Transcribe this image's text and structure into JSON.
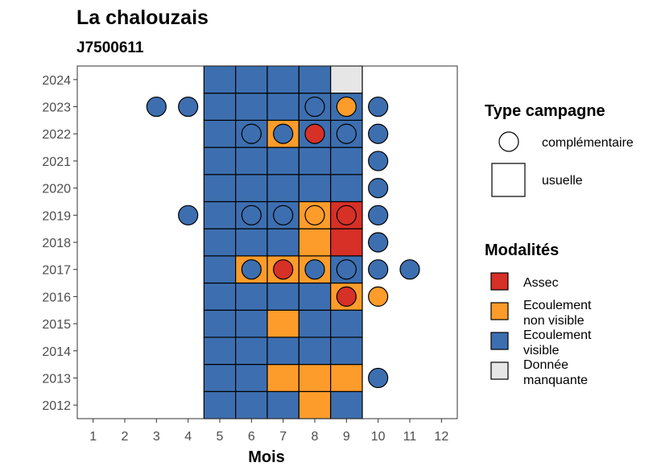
{
  "chart_data": {
    "type": "heatmap",
    "title": "La chalouzais",
    "subtitle": "J7500611",
    "xlabel": "Mois",
    "ylabel": "",
    "x_ticks": [
      "1",
      "2",
      "3",
      "4",
      "5",
      "6",
      "7",
      "8",
      "9",
      "10",
      "11",
      "12"
    ],
    "y_ticks": [
      "2012",
      "2013",
      "2014",
      "2015",
      "2016",
      "2017",
      "2018",
      "2019",
      "2020",
      "2021",
      "2022",
      "2023",
      "2024"
    ],
    "xlim": [
      0.5,
      12.5
    ],
    "ylim": [
      2011.5,
      2024.5
    ],
    "grid": false,
    "legend_position": "right",
    "colors": {
      "A": "#d73027",
      "O": "#fd9c2a",
      "B": "#3d6fb0",
      "G": "#e6e6e6"
    },
    "legends": {
      "type": {
        "title": "Type campagne",
        "items": [
          {
            "label": "complémentaire",
            "shape": "circle"
          },
          {
            "label": "usuelle",
            "shape": "square"
          }
        ]
      },
      "modalites": {
        "title": "Modalités",
        "items": [
          {
            "key": "A",
            "lines": [
              "Assec"
            ]
          },
          {
            "key": "O",
            "lines": [
              "Ecoulement",
              "non visible"
            ]
          },
          {
            "key": "B",
            "lines": [
              "Ecoulement",
              "visible"
            ]
          },
          {
            "key": "G",
            "lines": [
              "Donnée",
              "manquante"
            ]
          }
        ]
      }
    },
    "usuelle": [
      {
        "year": 2012,
        "months": [
          5,
          6,
          7,
          8,
          9
        ],
        "values": [
          "B",
          "B",
          "B",
          "O",
          "B"
        ]
      },
      {
        "year": 2013,
        "months": [
          5,
          6,
          7,
          8,
          9
        ],
        "values": [
          "B",
          "B",
          "O",
          "O",
          "O"
        ]
      },
      {
        "year": 2014,
        "months": [
          5,
          6,
          7,
          8,
          9
        ],
        "values": [
          "B",
          "B",
          "B",
          "B",
          "B"
        ]
      },
      {
        "year": 2015,
        "months": [
          5,
          6,
          7,
          8,
          9
        ],
        "values": [
          "B",
          "B",
          "O",
          "B",
          "B"
        ]
      },
      {
        "year": 2016,
        "months": [
          5,
          6,
          7,
          8,
          9
        ],
        "values": [
          "B",
          "B",
          "B",
          "B",
          "O"
        ]
      },
      {
        "year": 2017,
        "months": [
          5,
          6,
          7,
          8,
          9
        ],
        "values": [
          "B",
          "O",
          "O",
          "O",
          "B"
        ]
      },
      {
        "year": 2018,
        "months": [
          5,
          6,
          7,
          8,
          9
        ],
        "values": [
          "B",
          "B",
          "B",
          "O",
          "A"
        ]
      },
      {
        "year": 2019,
        "months": [
          5,
          6,
          7,
          8,
          9
        ],
        "values": [
          "B",
          "B",
          "B",
          "O",
          "A"
        ]
      },
      {
        "year": 2020,
        "months": [
          5,
          6,
          7,
          8,
          9
        ],
        "values": [
          "B",
          "B",
          "B",
          "B",
          "B"
        ]
      },
      {
        "year": 2021,
        "months": [
          5,
          6,
          7,
          8,
          9
        ],
        "values": [
          "B",
          "B",
          "B",
          "B",
          "B"
        ]
      },
      {
        "year": 2022,
        "months": [
          5,
          6,
          7,
          8,
          9
        ],
        "values": [
          "B",
          "B",
          "O",
          "B",
          "B"
        ]
      },
      {
        "year": 2023,
        "months": [
          5,
          6,
          7,
          8,
          9
        ],
        "values": [
          "B",
          "B",
          "B",
          "B",
          "B"
        ]
      },
      {
        "year": 2024,
        "months": [
          5,
          6,
          7,
          8,
          9
        ],
        "values": [
          "B",
          "B",
          "B",
          "B",
          "G"
        ]
      }
    ],
    "complementaire": [
      {
        "year": 2013,
        "month": 10,
        "value": "B"
      },
      {
        "year": 2016,
        "month": 9,
        "value": "A"
      },
      {
        "year": 2016,
        "month": 10,
        "value": "O"
      },
      {
        "year": 2017,
        "month": 6,
        "value": "B"
      },
      {
        "year": 2017,
        "month": 7,
        "value": "A"
      },
      {
        "year": 2017,
        "month": 8,
        "value": "B"
      },
      {
        "year": 2017,
        "month": 9,
        "value": "B"
      },
      {
        "year": 2017,
        "month": 10,
        "value": "B"
      },
      {
        "year": 2017,
        "month": 11,
        "value": "B"
      },
      {
        "year": 2018,
        "month": 10,
        "value": "B"
      },
      {
        "year": 2019,
        "month": 4,
        "value": "B"
      },
      {
        "year": 2019,
        "month": 6,
        "value": "B"
      },
      {
        "year": 2019,
        "month": 7,
        "value": "B"
      },
      {
        "year": 2019,
        "month": 8,
        "value": "O"
      },
      {
        "year": 2019,
        "month": 9,
        "value": "A"
      },
      {
        "year": 2019,
        "month": 10,
        "value": "B"
      },
      {
        "year": 2020,
        "month": 10,
        "value": "B"
      },
      {
        "year": 2021,
        "month": 10,
        "value": "B"
      },
      {
        "year": 2022,
        "month": 6,
        "value": "B"
      },
      {
        "year": 2022,
        "month": 7,
        "value": "B"
      },
      {
        "year": 2022,
        "month": 8,
        "value": "A"
      },
      {
        "year": 2022,
        "month": 9,
        "value": "B"
      },
      {
        "year": 2022,
        "month": 10,
        "value": "B"
      },
      {
        "year": 2023,
        "month": 3,
        "value": "B"
      },
      {
        "year": 2023,
        "month": 4,
        "value": "B"
      },
      {
        "year": 2023,
        "month": 8,
        "value": "B"
      },
      {
        "year": 2023,
        "month": 9,
        "value": "O"
      },
      {
        "year": 2023,
        "month": 10,
        "value": "B"
      }
    ]
  }
}
